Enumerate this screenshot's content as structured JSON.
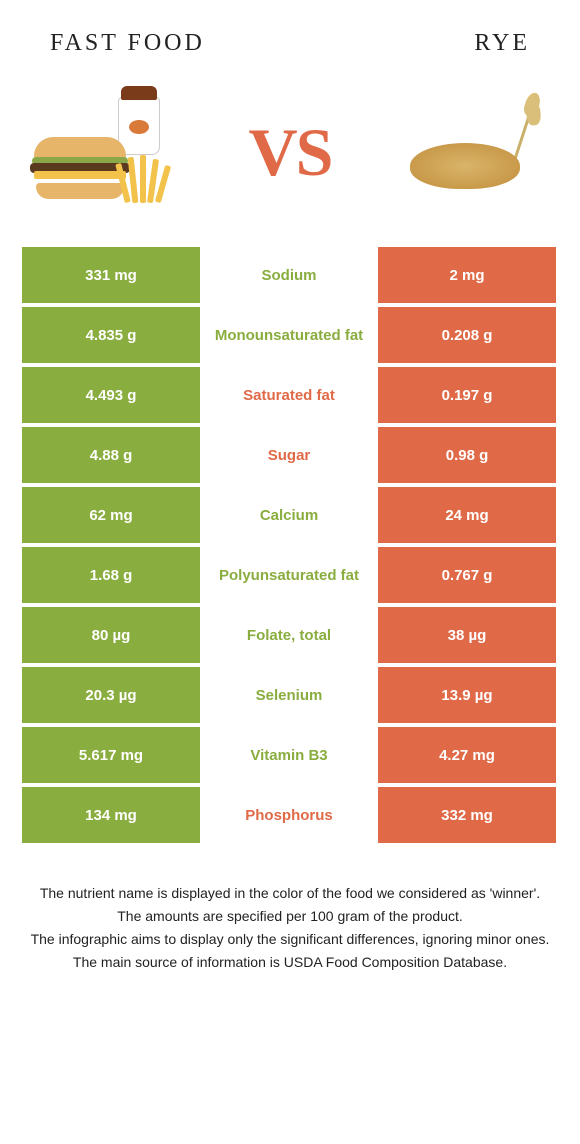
{
  "colors": {
    "green": "#8aad3f",
    "orange": "#e06a47",
    "white": "#ffffff"
  },
  "header": {
    "left": "Fast food",
    "right": "Rye"
  },
  "vs": "VS",
  "rows": [
    {
      "left": "331 mg",
      "name": "Sodium",
      "right": "2 mg",
      "winner": "left"
    },
    {
      "left": "4.835 g",
      "name": "Monounsaturated fat",
      "right": "0.208 g",
      "winner": "left"
    },
    {
      "left": "4.493 g",
      "name": "Saturated fat",
      "right": "0.197 g",
      "winner": "right"
    },
    {
      "left": "4.88 g",
      "name": "Sugar",
      "right": "0.98 g",
      "winner": "right"
    },
    {
      "left": "62 mg",
      "name": "Calcium",
      "right": "24 mg",
      "winner": "left"
    },
    {
      "left": "1.68 g",
      "name": "Polyunsaturated fat",
      "right": "0.767 g",
      "winner": "left"
    },
    {
      "left": "80 µg",
      "name": "Folate, total",
      "right": "38 µg",
      "winner": "left"
    },
    {
      "left": "20.3 µg",
      "name": "Selenium",
      "right": "13.9 µg",
      "winner": "left"
    },
    {
      "left": "5.617 mg",
      "name": "Vitamin B3",
      "right": "4.27 mg",
      "winner": "left"
    },
    {
      "left": "134 mg",
      "name": "Phosphorus",
      "right": "332 mg",
      "winner": "right"
    }
  ],
  "footer": {
    "l1": "The nutrient name is displayed in the color of the food we considered as 'winner'.",
    "l2": "The amounts are specified per 100 gram of the product.",
    "l3": "The infographic aims to display only the significant differences, ignoring minor ones.",
    "l4": "The main source of information is USDA Food Composition Database."
  }
}
